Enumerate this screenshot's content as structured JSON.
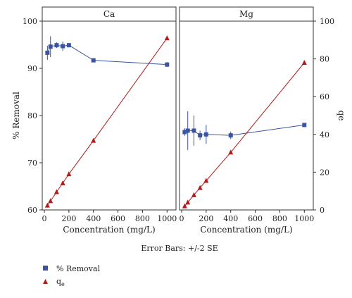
{
  "chart_data": [
    {
      "title": "Ca",
      "type": "line",
      "xlabel": "Concentration (mg/L)",
      "ylabel": "% Removal",
      "xlim": [
        0,
        1050
      ],
      "ylim": [
        60,
        100
      ],
      "y2lim": [
        0,
        100
      ],
      "xticks": [
        "0",
        "200",
        "400",
        "600",
        "800",
        "1000"
      ],
      "yticks": [
        "60",
        "70",
        "80",
        "90",
        "100"
      ],
      "series": [
        {
          "name": "% Removal",
          "axis": "left",
          "marker": "square",
          "color": "#3a54a4",
          "x": [
            25,
            50,
            100,
            150,
            200,
            400,
            1000
          ],
          "y": [
            93.3,
            94.6,
            94.9,
            94.7,
            94.9,
            91.7,
            90.8
          ],
          "err": [
            1.5,
            2.2,
            0.6,
            1.0,
            0.4,
            0.4,
            0.5
          ]
        },
        {
          "name": "qe",
          "axis": "right",
          "marker": "triangle",
          "color": "#b31b1b",
          "x": [
            25,
            50,
            100,
            150,
            200,
            400,
            1000
          ],
          "y": [
            2.4,
            4.7,
            9.5,
            14.2,
            19.0,
            36.7,
            91.0
          ]
        }
      ]
    },
    {
      "title": "Mg",
      "type": "line",
      "xlabel": "Concentration (mg/L)",
      "ylabel": "qe",
      "xlim": [
        0,
        1050
      ],
      "ylim": [
        60,
        100
      ],
      "y2lim": [
        0,
        100
      ],
      "xticks": [
        "0",
        "200",
        "400",
        "600",
        "800",
        "1000"
      ],
      "y2ticks": [
        "0",
        "20",
        "40",
        "60",
        "80",
        "100"
      ],
      "series": [
        {
          "name": "% Removal",
          "axis": "left",
          "marker": "square",
          "color": "#3a54a4",
          "x": [
            25,
            50,
            100,
            150,
            200,
            400,
            1000
          ],
          "y": [
            76.5,
            76.8,
            76.8,
            75.8,
            76.0,
            75.8,
            78.0
          ],
          "err": [
            0.8,
            4.1,
            3.2,
            1.0,
            2.0,
            0.8,
            0.3
          ]
        },
        {
          "name": "qe",
          "axis": "right",
          "marker": "triangle",
          "color": "#b31b1b",
          "x": [
            25,
            50,
            100,
            150,
            200,
            400,
            1000
          ],
          "y": [
            2.0,
            4.0,
            7.9,
            11.7,
            15.5,
            30.5,
            78.0
          ]
        }
      ]
    }
  ],
  "note": "Error Bars: +/-2 SE",
  "legend": [
    {
      "label": "% Removal",
      "marker": "square",
      "color": "#3a54a4"
    },
    {
      "label": "q",
      "sub": "e",
      "marker": "triangle",
      "color": "#b31b1b"
    }
  ]
}
